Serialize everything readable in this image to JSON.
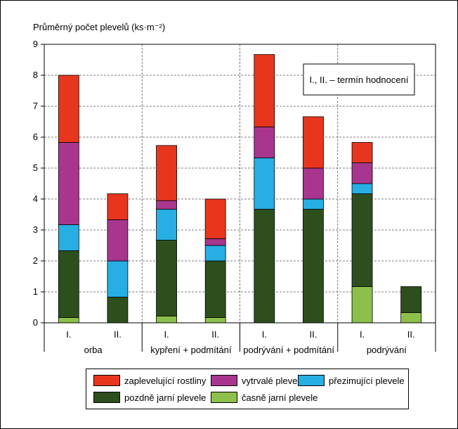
{
  "chart_data": {
    "type": "bar",
    "stacked": true,
    "ylabel": "Průměrný počet plevelů (ks·m⁻²)",
    "ylim": [
      0,
      9
    ],
    "yticks": [
      0,
      1,
      2,
      3,
      4,
      5,
      6,
      7,
      8,
      9
    ],
    "grid": true,
    "annotation": "I., II. – termín hodnocení",
    "groups": [
      {
        "label": "orba",
        "bars": [
          "I.",
          "II."
        ]
      },
      {
        "label": "kypření + podmítání",
        "bars": [
          "I.",
          "II."
        ]
      },
      {
        "label": "podrývání + podmítání",
        "bars": [
          "I.",
          "II."
        ]
      },
      {
        "label": "podrývání",
        "bars": [
          "I.",
          "II."
        ]
      }
    ],
    "series": [
      {
        "name": "časně jarní plevele",
        "color": "#8dc04a",
        "values": [
          0.17,
          0,
          0.22,
          0.17,
          0,
          0,
          1.17,
          0.33
        ]
      },
      {
        "name": "pozdně jarní plevele",
        "color": "#2d4f1e",
        "values": [
          2.16,
          0.83,
          2.45,
          1.83,
          3.67,
          3.67,
          3.0,
          0.84
        ]
      },
      {
        "name": "přezimující plevele",
        "color": "#27aee3",
        "values": [
          0.84,
          1.17,
          1.0,
          0.5,
          1.66,
          0.33,
          0.33,
          0
        ]
      },
      {
        "name": "vytrvalé plevele",
        "color": "#a8368f",
        "values": [
          2.66,
          1.33,
          0.28,
          0.22,
          1.0,
          1.0,
          0.67,
          0
        ]
      },
      {
        "name": "zaplevelující rostliny",
        "color": "#e8361e",
        "values": [
          2.17,
          0.84,
          1.78,
          1.28,
          2.34,
          1.66,
          0.66,
          0
        ]
      }
    ]
  },
  "legend": {
    "order": [
      "zaplevelující rostliny",
      "vytrvalé plevele",
      "přezimující plevele",
      "pozdně jarní plevele",
      "časně jarní plevele"
    ],
    "colors": [
      "#e8361e",
      "#a8368f",
      "#27aee3",
      "#2d4f1e",
      "#8dc04a"
    ]
  }
}
